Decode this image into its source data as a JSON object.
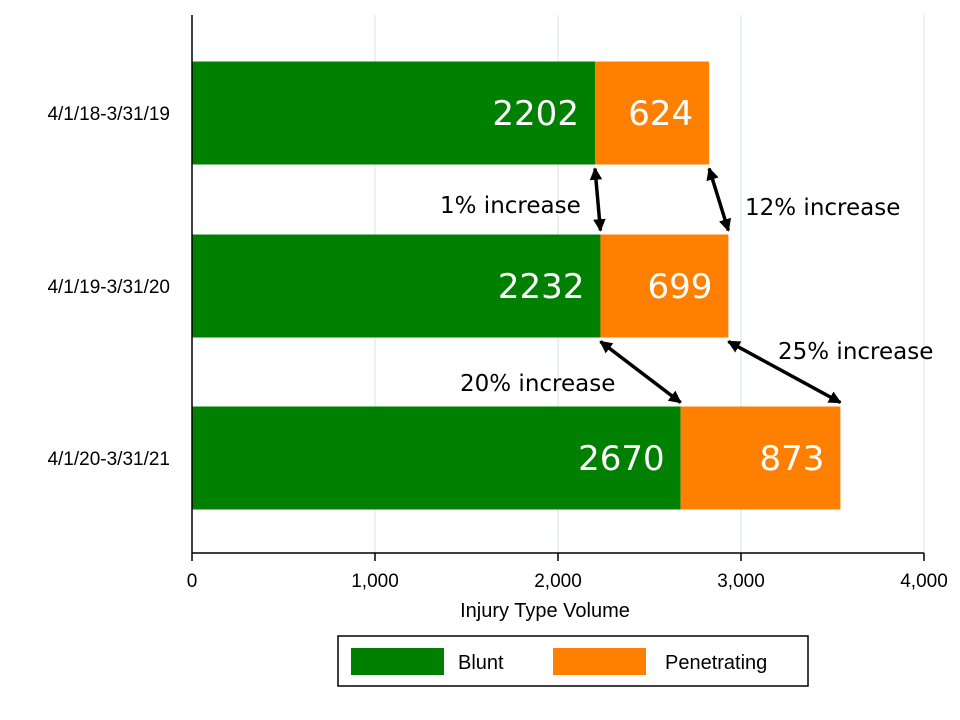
{
  "chart_data": {
    "type": "bar",
    "orientation": "horizontal",
    "stacked": true,
    "categories": [
      "4/1/18-3/31/19",
      "4/1/19-3/31/20",
      "4/1/20-3/31/21"
    ],
    "series": [
      {
        "name": "Blunt",
        "values": [
          2202,
          2232,
          2670
        ],
        "color": "#008000"
      },
      {
        "name": "Penetrating",
        "values": [
          624,
          699,
          873
        ],
        "color": "#ff8000"
      }
    ],
    "xlabel": "Injury Type Volume",
    "xlim": [
      0,
      4000
    ],
    "xticks": [
      0,
      1000,
      2000,
      3000,
      4000
    ],
    "xtick_labels": [
      "0",
      "1,000",
      "2,000",
      "3,000",
      "4,000"
    ],
    "grid": "vertical",
    "legend_position": "bottom",
    "annotations": [
      {
        "text": "1% increase",
        "from": [
          2202,
          "4/1/18-3/31/19"
        ],
        "to": [
          2232,
          "4/1/19-3/31/20"
        ]
      },
      {
        "text": "12% increase",
        "from": [
          2826,
          "4/1/18-3/31/19"
        ],
        "to": [
          2931,
          "4/1/19-3/31/20"
        ]
      },
      {
        "text": "20% increase",
        "from": [
          2232,
          "4/1/19-3/31/20"
        ],
        "to": [
          2670,
          "4/1/20-3/31/21"
        ]
      },
      {
        "text": "25% increase",
        "from": [
          2931,
          "4/1/19-3/31/20"
        ],
        "to": [
          3543,
          "4/1/20-3/31/21"
        ]
      }
    ]
  }
}
